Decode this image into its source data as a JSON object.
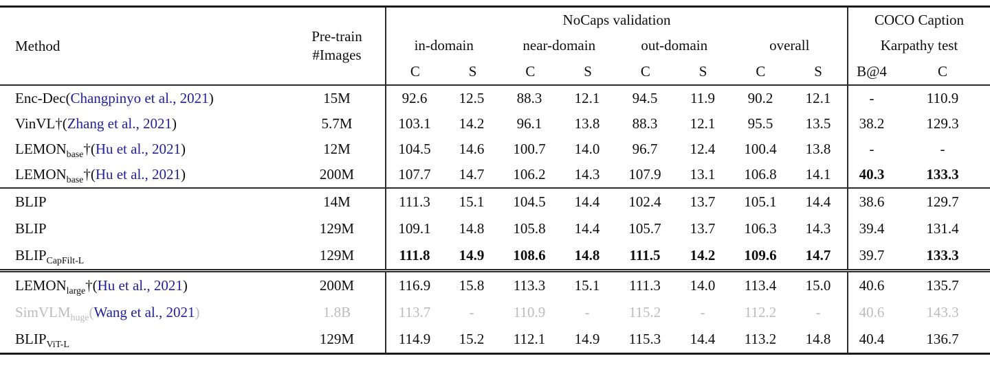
{
  "colors": {
    "citation": "#21219c",
    "muted_text": "#bcbcbc",
    "text": "#0e0e0e",
    "rule": "#2b2b2b"
  },
  "punct": {
    "cite_open": " (",
    "cite_close": ")"
  },
  "columns": {
    "method": "Method",
    "pretrain_line1": "Pre-train",
    "pretrain_line2": "#Images",
    "nocaps_title": "NoCaps validation",
    "groups": [
      "in-domain",
      "near-domain",
      "out-domain",
      "overall"
    ],
    "sub_metrics": [
      "C",
      "S"
    ],
    "coco_line1": "COCO Caption",
    "coco_line2": "Karpathy test",
    "coco_metrics": [
      "B@4",
      "C"
    ]
  },
  "sections": [
    {
      "rows": [
        {
          "method_name": "Enc-Dec",
          "method_sub": "",
          "dagger": "",
          "cite": "Changpinyo et al., 2021",
          "pretrain": "15M",
          "nocaps": [
            "92.6",
            "12.5",
            "88.3",
            "12.1",
            "94.5",
            "11.9",
            "90.2",
            "12.1"
          ],
          "nocaps_bold": false,
          "coco": [
            "-",
            "110.9"
          ],
          "coco_bold": [
            false,
            false
          ],
          "muted": false
        },
        {
          "method_name": "VinVL",
          "method_sub": "",
          "dagger": "†",
          "cite": "Zhang et al., 2021",
          "pretrain": "5.7M",
          "nocaps": [
            "103.1",
            "14.2",
            "96.1",
            "13.8",
            "88.3",
            "12.1",
            "95.5",
            "13.5"
          ],
          "nocaps_bold": false,
          "coco": [
            "38.2",
            "129.3"
          ],
          "coco_bold": [
            false,
            false
          ],
          "muted": false
        },
        {
          "method_name": "LEMON",
          "method_sub": "base",
          "dagger": "†",
          "cite": "Hu et al., 2021",
          "pretrain": "12M",
          "nocaps": [
            "104.5",
            "14.6",
            "100.7",
            "14.0",
            "96.7",
            "12.4",
            "100.4",
            "13.8"
          ],
          "nocaps_bold": false,
          "coco": [
            "-",
            "-"
          ],
          "coco_bold": [
            false,
            false
          ],
          "muted": false
        },
        {
          "method_name": "LEMON",
          "method_sub": "base",
          "dagger": "†",
          "cite": "Hu et al., 2021",
          "pretrain": "200M",
          "nocaps": [
            "107.7",
            "14.7",
            "106.2",
            "14.3",
            "107.9",
            "13.1",
            "106.8",
            "14.1"
          ],
          "nocaps_bold": false,
          "coco": [
            "40.3",
            "133.3"
          ],
          "coco_bold": [
            true,
            true
          ],
          "muted": false
        }
      ]
    },
    {
      "rows": [
        {
          "method_name": "BLIP",
          "method_sub": "",
          "dagger": "",
          "cite": "",
          "pretrain": "14M",
          "nocaps": [
            "111.3",
            "15.1",
            "104.5",
            "14.4",
            "102.4",
            "13.7",
            "105.1",
            "14.4"
          ],
          "nocaps_bold": false,
          "coco": [
            "38.6",
            "129.7"
          ],
          "coco_bold": [
            false,
            false
          ],
          "muted": false
        },
        {
          "method_name": "BLIP",
          "method_sub": "",
          "dagger": "",
          "cite": "",
          "pretrain": "129M",
          "nocaps": [
            "109.1",
            "14.8",
            "105.8",
            "14.4",
            "105.7",
            "13.7",
            "106.3",
            "14.3"
          ],
          "nocaps_bold": false,
          "coco": [
            "39.4",
            "131.4"
          ],
          "coco_bold": [
            false,
            false
          ],
          "muted": false
        },
        {
          "method_name": "BLIP",
          "method_sub": "CapFilt-L",
          "dagger": "",
          "cite": "",
          "pretrain": "129M",
          "nocaps": [
            "111.8",
            "14.9",
            "108.6",
            "14.8",
            "111.5",
            "14.2",
            "109.6",
            "14.7"
          ],
          "nocaps_bold": true,
          "coco": [
            "39.7",
            "133.3"
          ],
          "coco_bold": [
            false,
            true
          ],
          "muted": false
        }
      ]
    },
    {
      "rows": [
        {
          "method_name": "LEMON",
          "method_sub": "large",
          "dagger": "†",
          "cite": "Hu et al., 2021",
          "pretrain": "200M",
          "nocaps": [
            "116.9",
            "15.8",
            "113.3",
            "15.1",
            "111.3",
            "14.0",
            "113.4",
            "15.0"
          ],
          "nocaps_bold": false,
          "coco": [
            "40.6",
            "135.7"
          ],
          "coco_bold": [
            false,
            false
          ],
          "muted": false
        },
        {
          "method_name": "SimVLM",
          "method_sub": "huge",
          "dagger": "",
          "cite": "Wang et al., 2021",
          "pretrain": "1.8B",
          "nocaps": [
            "113.7",
            "-",
            "110.9",
            "-",
            "115.2",
            "-",
            "112.2",
            "-"
          ],
          "nocaps_bold": false,
          "coco": [
            "40.6",
            "143.3"
          ],
          "coco_bold": [
            false,
            false
          ],
          "muted": true
        },
        {
          "method_name": "BLIP",
          "method_sub": "ViT-L",
          "dagger": "",
          "cite": "",
          "pretrain": "129M",
          "nocaps": [
            "114.9",
            "15.2",
            "112.1",
            "14.9",
            "115.3",
            "14.4",
            "113.2",
            "14.8"
          ],
          "nocaps_bold": false,
          "coco": [
            "40.4",
            "136.7"
          ],
          "coco_bold": [
            false,
            false
          ],
          "muted": false
        }
      ]
    }
  ]
}
